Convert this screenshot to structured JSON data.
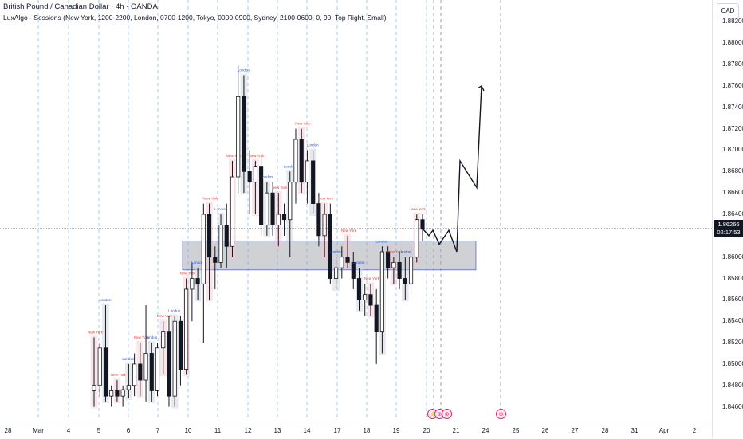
{
  "header": {
    "title": "British Pound / Canadian Dollar · 4h · OANDA",
    "indicator": "LuxAlgo - Sessions (New York, 1200-2200, London, 0700-1200, Tokyo, 0000-0900, Sydney, 2100-0600, 0, 90, Top Right, Small)"
  },
  "price_axis": {
    "currency_button": "CAD",
    "ticks": [
      "1.88200",
      "1.88000",
      "1.87800",
      "1.87600",
      "1.87400",
      "1.87200",
      "1.87000",
      "1.86800",
      "1.86600",
      "1.86400",
      "1.86200",
      "1.86000",
      "1.85800",
      "1.85600",
      "1.85400",
      "1.85200",
      "1.85000",
      "1.84800",
      "1.84600"
    ],
    "current_price": "1.86266",
    "countdown": "02:17:53"
  },
  "time_axis": {
    "ticks": [
      "28",
      "Mar",
      "4",
      "5",
      "6",
      "7",
      "10",
      "11",
      "12",
      "13",
      "14",
      "17",
      "18",
      "19",
      "20",
      "21",
      "24",
      "25",
      "26",
      "27",
      "28",
      "31",
      "Apr",
      "2"
    ]
  },
  "event_markers": [
    "⚡",
    "⊕",
    "⊕",
    "⊕"
  ],
  "sessions": [
    "New York",
    "London",
    "Sydney",
    "Tokyo"
  ],
  "colors": {
    "up": "#ffffff",
    "down": "#131722",
    "newyork_box": "#f5c6cb",
    "london_box": "#9fb3d8",
    "sydney_box": "#d1d4dc",
    "zone": "#9598a1",
    "projection": "#131722"
  },
  "chart_data": {
    "type": "candlestick",
    "symbol": "GBPCAD",
    "timeframe": "4h",
    "ylim": [
      1.845,
      1.883
    ],
    "candles": [
      {
        "o": 1.8475,
        "h": 1.8525,
        "l": 1.846,
        "c": 1.848
      },
      {
        "o": 1.848,
        "h": 1.852,
        "l": 1.847,
        "c": 1.8515
      },
      {
        "o": 1.8515,
        "h": 1.8555,
        "l": 1.8465,
        "c": 1.847
      },
      {
        "o": 1.847,
        "h": 1.848,
        "l": 1.846,
        "c": 1.8475
      },
      {
        "o": 1.8475,
        "h": 1.8485,
        "l": 1.8465,
        "c": 1.847
      },
      {
        "o": 1.847,
        "h": 1.848,
        "l": 1.846,
        "c": 1.8476
      },
      {
        "o": 1.8476,
        "h": 1.85,
        "l": 1.8468,
        "c": 1.848
      },
      {
        "o": 1.848,
        "h": 1.851,
        "l": 1.847,
        "c": 1.85
      },
      {
        "o": 1.85,
        "h": 1.852,
        "l": 1.847,
        "c": 1.8485
      },
      {
        "o": 1.8485,
        "h": 1.8555,
        "l": 1.8465,
        "c": 1.851
      },
      {
        "o": 1.851,
        "h": 1.852,
        "l": 1.8465,
        "c": 1.8475
      },
      {
        "o": 1.8475,
        "h": 1.852,
        "l": 1.847,
        "c": 1.8515
      },
      {
        "o": 1.8515,
        "h": 1.854,
        "l": 1.849,
        "c": 1.853
      },
      {
        "o": 1.853,
        "h": 1.8545,
        "l": 1.846,
        "c": 1.847
      },
      {
        "o": 1.847,
        "h": 1.8545,
        "l": 1.846,
        "c": 1.854
      },
      {
        "o": 1.854,
        "h": 1.8545,
        "l": 1.848,
        "c": 1.8495
      },
      {
        "o": 1.8495,
        "h": 1.858,
        "l": 1.849,
        "c": 1.857
      },
      {
        "o": 1.857,
        "h": 1.8595,
        "l": 1.854,
        "c": 1.858
      },
      {
        "o": 1.858,
        "h": 1.859,
        "l": 1.856,
        "c": 1.8575
      },
      {
        "o": 1.8575,
        "h": 1.865,
        "l": 1.852,
        "c": 1.864
      },
      {
        "o": 1.864,
        "h": 1.865,
        "l": 1.856,
        "c": 1.86
      },
      {
        "o": 1.86,
        "h": 1.861,
        "l": 1.857,
        "c": 1.8595
      },
      {
        "o": 1.8595,
        "h": 1.864,
        "l": 1.859,
        "c": 1.863
      },
      {
        "o": 1.863,
        "h": 1.865,
        "l": 1.859,
        "c": 1.861
      },
      {
        "o": 1.861,
        "h": 1.869,
        "l": 1.86,
        "c": 1.8675
      },
      {
        "o": 1.8675,
        "h": 1.878,
        "l": 1.866,
        "c": 1.875
      },
      {
        "o": 1.875,
        "h": 1.877,
        "l": 1.866,
        "c": 1.868
      },
      {
        "o": 1.868,
        "h": 1.87,
        "l": 1.864,
        "c": 1.867
      },
      {
        "o": 1.867,
        "h": 1.869,
        "l": 1.864,
        "c": 1.8685
      },
      {
        "o": 1.8685,
        "h": 1.8695,
        "l": 1.862,
        "c": 1.863
      },
      {
        "o": 1.863,
        "h": 1.867,
        "l": 1.862,
        "c": 1.866
      },
      {
        "o": 1.866,
        "h": 1.867,
        "l": 1.862,
        "c": 1.863
      },
      {
        "o": 1.863,
        "h": 1.866,
        "l": 1.861,
        "c": 1.864
      },
      {
        "o": 1.864,
        "h": 1.865,
        "l": 1.862,
        "c": 1.8635
      },
      {
        "o": 1.8635,
        "h": 1.868,
        "l": 1.86,
        "c": 1.867
      },
      {
        "o": 1.867,
        "h": 1.872,
        "l": 1.865,
        "c": 1.871
      },
      {
        "o": 1.871,
        "h": 1.872,
        "l": 1.866,
        "c": 1.867
      },
      {
        "o": 1.867,
        "h": 1.87,
        "l": 1.865,
        "c": 1.869
      },
      {
        "o": 1.869,
        "h": 1.87,
        "l": 1.864,
        "c": 1.865
      },
      {
        "o": 1.865,
        "h": 1.866,
        "l": 1.861,
        "c": 1.862
      },
      {
        "o": 1.862,
        "h": 1.865,
        "l": 1.86,
        "c": 1.864
      },
      {
        "o": 1.864,
        "h": 1.865,
        "l": 1.8575,
        "c": 1.858
      },
      {
        "o": 1.858,
        "h": 1.86,
        "l": 1.857,
        "c": 1.859
      },
      {
        "o": 1.859,
        "h": 1.861,
        "l": 1.858,
        "c": 1.86
      },
      {
        "o": 1.86,
        "h": 1.862,
        "l": 1.859,
        "c": 1.8595
      },
      {
        "o": 1.8595,
        "h": 1.8605,
        "l": 1.857,
        "c": 1.858
      },
      {
        "o": 1.858,
        "h": 1.859,
        "l": 1.855,
        "c": 1.856
      },
      {
        "o": 1.856,
        "h": 1.8575,
        "l": 1.8545,
        "c": 1.8565
      },
      {
        "o": 1.8565,
        "h": 1.8575,
        "l": 1.8545,
        "c": 1.8555
      },
      {
        "o": 1.8555,
        "h": 1.857,
        "l": 1.85,
        "c": 1.853
      },
      {
        "o": 1.853,
        "h": 1.861,
        "l": 1.851,
        "c": 1.8605
      },
      {
        "o": 1.8605,
        "h": 1.861,
        "l": 1.858,
        "c": 1.859
      },
      {
        "o": 1.859,
        "h": 1.86,
        "l": 1.8575,
        "c": 1.8595
      },
      {
        "o": 1.8595,
        "h": 1.8605,
        "l": 1.857,
        "c": 1.858
      },
      {
        "o": 1.858,
        "h": 1.86,
        "l": 1.856,
        "c": 1.8575
      },
      {
        "o": 1.8575,
        "h": 1.861,
        "l": 1.8565,
        "c": 1.86
      },
      {
        "o": 1.86,
        "h": 1.864,
        "l": 1.8595,
        "c": 1.8635
      },
      {
        "o": 1.8635,
        "h": 1.864,
        "l": 1.8615,
        "c": 1.8626
      }
    ],
    "zone": {
      "top": 1.8615,
      "bottom": 1.8588
    },
    "current_price": 1.86266,
    "projection": [
      1.86266,
      1.862,
      1.8625,
      1.8612,
      1.8625,
      1.8605,
      1.869,
      1.8665,
      1.876
    ]
  }
}
